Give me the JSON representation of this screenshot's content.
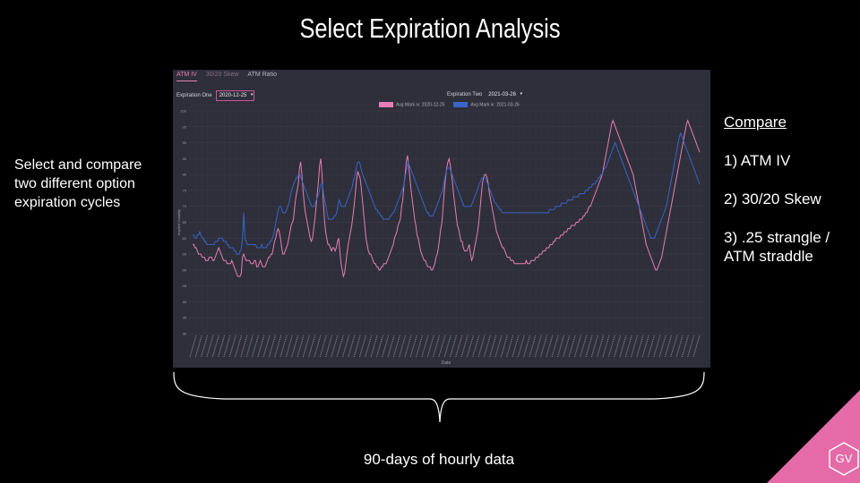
{
  "slide": {
    "title": "Select Expiration Analysis",
    "left_note": "Select and compare two different option expiration cycles",
    "compare_heading": "Compare",
    "compare_items": [
      "1) ATM IV",
      "2) 30/20 Skew",
      "3) .25 strangle / ATM straddle"
    ],
    "bottom_caption": "90-days of hourly data",
    "logo_text": "GV",
    "logo_color": "#e46aa8"
  },
  "tabs": [
    {
      "label": "ATM IV",
      "active": true
    },
    {
      "label": "30/20 Skew",
      "active": false
    },
    {
      "label": "ATM Ratio",
      "active": false
    }
  ],
  "selectors": {
    "one_label": "Expiration One",
    "one_value": "2020-12-25",
    "two_label": "Expiration Two",
    "two_value": "2021-03-26"
  },
  "chart_data": {
    "type": "line",
    "ylabel": "Implied Volatility",
    "xlabel": "Date",
    "ylim": [
      30,
      100
    ],
    "yticks": [
      30,
      35,
      40,
      45,
      50,
      55,
      60,
      65,
      70,
      75,
      80,
      85,
      90,
      95,
      100
    ],
    "grid": true,
    "legend": "top-center",
    "x_count": 90,
    "series": [
      {
        "name": "Avg Mark iv: 2020-12-25",
        "color": "#e87eb3",
        "values": [
          58,
          58,
          57,
          57,
          56,
          55,
          55,
          55,
          54,
          54,
          54,
          53,
          53,
          53,
          54,
          54,
          54,
          53,
          53,
          54,
          55,
          56,
          57,
          56,
          55,
          54,
          53,
          53,
          53,
          52,
          52,
          52,
          52,
          53,
          52,
          51,
          50,
          49,
          48,
          48,
          48,
          49,
          54,
          55,
          54,
          53,
          53,
          53,
          53,
          52,
          52,
          52,
          53,
          53,
          51,
          51,
          52,
          53,
          52,
          51,
          51,
          51,
          52,
          53,
          54,
          54,
          55,
          55,
          57,
          59,
          60,
          62,
          63,
          62,
          60,
          57,
          55,
          55,
          56,
          57,
          58,
          60,
          62,
          64,
          65,
          66,
          70,
          73,
          75,
          77,
          82,
          84,
          80,
          75,
          71,
          68,
          66,
          64,
          62,
          60,
          59,
          60,
          63,
          66,
          70,
          74,
          78,
          83,
          85,
          80,
          72,
          66,
          62,
          60,
          58,
          58,
          57,
          56,
          57,
          57,
          56,
          57,
          59,
          60,
          56,
          52,
          50,
          48,
          49,
          52,
          55,
          58,
          60,
          62,
          64,
          67,
          70,
          74,
          78,
          81,
          80,
          79,
          76,
          72,
          68,
          64,
          60,
          58,
          56,
          55,
          55,
          54,
          53,
          52,
          52,
          51,
          51,
          50,
          50,
          51,
          51,
          52,
          52,
          52,
          53,
          54,
          55,
          56,
          57,
          58,
          60,
          61,
          62,
          64,
          65,
          66,
          70,
          72,
          77,
          80,
          84,
          86,
          83,
          79,
          75,
          72,
          69,
          66,
          64,
          61,
          60,
          58,
          56,
          55,
          54,
          53,
          53,
          52,
          51,
          51,
          51,
          50,
          50,
          51,
          52,
          54,
          55,
          57,
          60,
          63,
          65,
          70,
          75,
          79,
          82,
          84,
          85,
          83,
          80,
          77,
          73,
          70,
          67,
          64,
          63,
          61,
          59,
          59,
          57,
          56,
          56,
          56,
          57,
          58,
          55,
          53,
          54,
          56,
          58,
          60,
          62,
          65,
          69,
          73,
          77,
          79,
          80,
          80,
          79,
          77,
          74,
          72,
          70,
          68,
          66,
          64,
          62,
          61,
          60,
          59,
          58,
          57,
          57,
          56,
          55,
          54,
          54,
          54,
          53,
          53,
          53,
          52,
          52,
          52,
          52,
          52,
          52,
          52,
          52,
          52,
          52,
          53,
          52,
          52,
          52,
          53,
          53,
          53,
          53,
          54,
          54,
          54,
          55,
          55,
          55,
          56,
          56,
          56,
          57,
          57,
          57,
          58,
          58,
          58,
          59,
          59,
          60,
          60,
          60,
          60,
          61,
          61,
          61,
          62,
          62,
          62,
          63,
          63,
          63,
          64,
          64,
          64,
          64,
          65,
          65,
          65,
          66,
          66,
          66,
          67,
          67,
          68,
          68,
          69,
          70,
          70,
          71,
          72,
          73,
          74,
          75,
          76,
          77,
          78,
          79,
          80,
          82,
          84,
          86,
          88,
          90,
          92,
          94,
          96,
          97,
          96,
          95,
          94,
          93,
          92,
          91,
          90,
          89,
          88,
          87,
          86,
          85,
          84,
          83,
          82,
          81,
          80,
          78,
          76,
          74,
          72,
          70,
          68,
          66,
          64,
          62,
          60,
          58,
          57,
          56,
          55,
          54,
          53,
          52,
          51,
          50,
          50,
          51,
          52,
          53,
          54,
          56,
          58,
          60,
          62,
          64,
          66,
          68,
          70,
          72,
          74,
          76,
          78,
          80,
          82,
          84,
          86,
          88,
          90,
          92,
          94,
          96,
          97,
          96,
          95,
          94,
          93,
          92,
          91,
          90,
          89,
          88,
          87
        ]
      },
      {
        "name": "Avg Mark iv: 2021-03-26",
        "color": "#3a64c8",
        "values": [
          61,
          61,
          60,
          60,
          61,
          61,
          62,
          61,
          60,
          60,
          59,
          59,
          58,
          58,
          58,
          58,
          58,
          58,
          58,
          59,
          59,
          59,
          60,
          60,
          60,
          60,
          59,
          59,
          59,
          58,
          58,
          57,
          57,
          57,
          57,
          56,
          56,
          55,
          55,
          55,
          56,
          57,
          60,
          68,
          60,
          59,
          58,
          58,
          58,
          58,
          58,
          58,
          58,
          58,
          57,
          57,
          57,
          57,
          58,
          57,
          57,
          57,
          57,
          58,
          58,
          59,
          59,
          60,
          61,
          63,
          65,
          67,
          69,
          70,
          70,
          69,
          68,
          68,
          68,
          69,
          70,
          71,
          73,
          75,
          76,
          77,
          78,
          79,
          79,
          80,
          80,
          79,
          78,
          77,
          76,
          75,
          74,
          73,
          72,
          71,
          70,
          70,
          70,
          71,
          72,
          73,
          74,
          76,
          77,
          77,
          74,
          72,
          70,
          68,
          66,
          66,
          66,
          66,
          66,
          67,
          67,
          68,
          70,
          72,
          71,
          70,
          70,
          70,
          70,
          71,
          72,
          73,
          74,
          75,
          76,
          78,
          79,
          81,
          83,
          84,
          84,
          83,
          81,
          80,
          79,
          78,
          77,
          76,
          75,
          74,
          73,
          72,
          71,
          70,
          69,
          69,
          68,
          68,
          67,
          67,
          66,
          66,
          66,
          66,
          66,
          66,
          67,
          67,
          68,
          68,
          69,
          70,
          71,
          72,
          73,
          74,
          75,
          76,
          78,
          80,
          82,
          84,
          83,
          82,
          81,
          80,
          79,
          78,
          77,
          76,
          75,
          74,
          73,
          72,
          71,
          70,
          69,
          68,
          68,
          67,
          67,
          67,
          67,
          68,
          69,
          70,
          71,
          72,
          73,
          74,
          75,
          77,
          79,
          81,
          82,
          82,
          82,
          81,
          80,
          79,
          78,
          77,
          76,
          75,
          74,
          73,
          72,
          71,
          70,
          70,
          70,
          70,
          70,
          70,
          70,
          71,
          72,
          73,
          74,
          75,
          76,
          77,
          78,
          79,
          79,
          79,
          79,
          78,
          77,
          76,
          75,
          74,
          73,
          72,
          71,
          71,
          70,
          70,
          69,
          69,
          68,
          68,
          68,
          68,
          68,
          68,
          68,
          68,
          68,
          68,
          68,
          68,
          68,
          68,
          68,
          68,
          68,
          68,
          68,
          68,
          68,
          68,
          68,
          68,
          68,
          68,
          68,
          68,
          68,
          68,
          68,
          68,
          68,
          68,
          68,
          68,
          68,
          68,
          68,
          68,
          69,
          69,
          69,
          69,
          69,
          70,
          70,
          70,
          70,
          70,
          71,
          71,
          71,
          71,
          71,
          72,
          72,
          72,
          72,
          72,
          73,
          73,
          73,
          73,
          73,
          74,
          74,
          74,
          74,
          74,
          75,
          75,
          75,
          76,
          76,
          76,
          77,
          77,
          77,
          78,
          78,
          79,
          79,
          80,
          80,
          81,
          82,
          82,
          83,
          84,
          85,
          86,
          87,
          88,
          89,
          90,
          89,
          88,
          87,
          86,
          85,
          84,
          83,
          82,
          81,
          80,
          79,
          78,
          77,
          76,
          75,
          74,
          73,
          72,
          71,
          70,
          69,
          68,
          67,
          66,
          65,
          64,
          63,
          62,
          61,
          60,
          60,
          60,
          60,
          61,
          62,
          63,
          64,
          65,
          66,
          67,
          68,
          69,
          70,
          72,
          74,
          76,
          78,
          80,
          82,
          84,
          86,
          88,
          90,
          92,
          93,
          92,
          91,
          90,
          89,
          88,
          87,
          86,
          85,
          84,
          83,
          82,
          81,
          80,
          79,
          78,
          77
        ]
      }
    ]
  }
}
